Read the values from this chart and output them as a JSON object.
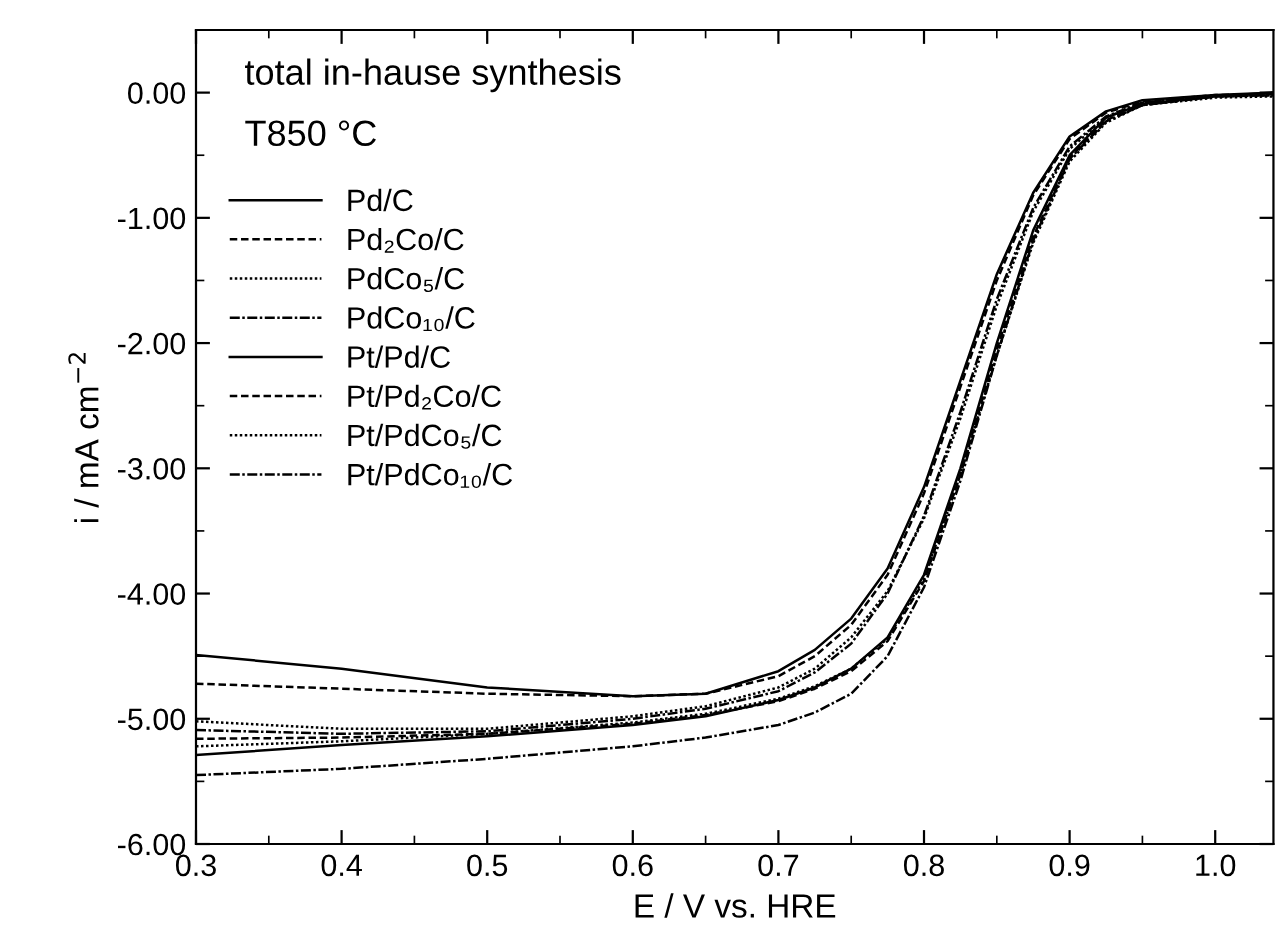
{
  "chart_data": {
    "type": "line",
    "xlabel": "E / V vs. HRE",
    "ylabel": "i / mA cm$^{−2}$",
    "annotations": [
      "total in-hause synthesis",
      "T850 °C"
    ],
    "x": [
      0.3,
      0.4,
      0.5,
      0.6,
      0.65,
      0.7,
      0.725,
      0.75,
      0.775,
      0.8,
      0.825,
      0.85,
      0.875,
      0.9,
      0.925,
      0.95,
      1.0,
      1.04
    ],
    "xlim": [
      0.3,
      1.04
    ],
    "ylim": [
      -6,
      0.5
    ],
    "xticks": [
      {
        "value": 0.3,
        "label": "0.3"
      },
      {
        "value": 0.4,
        "label": "0.4"
      },
      {
        "value": 0.5,
        "label": "0.5"
      },
      {
        "value": 0.6,
        "label": "0.6"
      },
      {
        "value": 0.7,
        "label": "0.7"
      },
      {
        "value": 0.8,
        "label": "0.8"
      },
      {
        "value": 0.9,
        "label": "0.9"
      },
      {
        "value": 1.0,
        "label": "1.0"
      }
    ],
    "yticks": [
      {
        "value": 0,
        "label": "0.00"
      },
      {
        "value": -1,
        "label": "-1.00"
      },
      {
        "value": -2,
        "label": "-2.00"
      },
      {
        "value": -3,
        "label": "-3.00"
      },
      {
        "value": -4,
        "label": "-4.00"
      },
      {
        "value": -5,
        "label": "-5.00"
      },
      {
        "value": -6,
        "label": "-6.00"
      }
    ],
    "legend": "top left",
    "grid": false,
    "marker": "none",
    "series": [
      {
        "name": "Pd/C",
        "color": "#000000",
        "line_style": "solid",
        "values": [
          -4.49,
          -4.6,
          -4.75,
          -4.82,
          -4.8,
          -4.62,
          -4.45,
          -4.2,
          -3.8,
          -3.15,
          -2.3,
          -1.45,
          -0.8,
          -0.35,
          -0.15,
          -0.06,
          -0.02,
          0.0
        ]
      },
      {
        "name": "Pd₂Co/C",
        "color": "#000000",
        "line_style": "dashed",
        "values": [
          -4.72,
          -4.76,
          -4.8,
          -4.82,
          -4.8,
          -4.66,
          -4.5,
          -4.25,
          -3.85,
          -3.2,
          -2.35,
          -1.5,
          -0.82,
          -0.37,
          -0.16,
          -0.07,
          -0.02,
          -0.01
        ]
      },
      {
        "name": "PdCo₅/C",
        "color": "#000000",
        "line_style": "dotted",
        "values": [
          -5.02,
          -5.08,
          -5.08,
          -4.98,
          -4.9,
          -4.75,
          -4.6,
          -4.35,
          -3.98,
          -3.4,
          -2.6,
          -1.7,
          -0.95,
          -0.45,
          -0.2,
          -0.08,
          -0.03,
          -0.02
        ]
      },
      {
        "name": "PdCo₁₀/C",
        "color": "#000000",
        "line_style": "dashdot",
        "values": [
          -5.09,
          -5.12,
          -5.1,
          -5.0,
          -4.92,
          -4.78,
          -4.63,
          -4.4,
          -4.0,
          -3.38,
          -2.55,
          -1.65,
          -0.92,
          -0.43,
          -0.19,
          -0.08,
          -0.03,
          -0.01
        ]
      },
      {
        "name": "Pt/Pd/C",
        "color": "#000000",
        "line_style": "solid",
        "values": [
          -5.29,
          -5.21,
          -5.14,
          -5.05,
          -4.98,
          -4.85,
          -4.75,
          -4.6,
          -4.35,
          -3.85,
          -3.0,
          -2.0,
          -1.1,
          -0.5,
          -0.2,
          -0.09,
          -0.03,
          0.0
        ]
      },
      {
        "name": "Pt/Pd₂Co/C",
        "color": "#000000",
        "line_style": "dashed",
        "values": [
          -5.16,
          -5.15,
          -5.12,
          -5.04,
          -4.97,
          -4.86,
          -4.76,
          -4.62,
          -4.38,
          -3.9,
          -3.05,
          -2.05,
          -1.15,
          -0.52,
          -0.22,
          -0.1,
          -0.03,
          -0.02
        ]
      },
      {
        "name": "Pt/PdCo₅/C",
        "color": "#000000",
        "line_style": "dotted",
        "values": [
          -5.22,
          -5.18,
          -5.12,
          -5.03,
          -4.96,
          -4.84,
          -4.74,
          -4.6,
          -4.36,
          -3.88,
          -3.05,
          -2.1,
          -1.2,
          -0.55,
          -0.24,
          -0.1,
          -0.04,
          -0.03
        ]
      },
      {
        "name": "Pt/PdCo₁₀/C",
        "color": "#000000",
        "line_style": "dashdot",
        "values": [
          -5.45,
          -5.4,
          -5.32,
          -5.22,
          -5.15,
          -5.05,
          -4.95,
          -4.8,
          -4.5,
          -3.95,
          -3.1,
          -2.1,
          -1.18,
          -0.53,
          -0.23,
          -0.1,
          -0.03,
          -0.02
        ]
      }
    ]
  }
}
